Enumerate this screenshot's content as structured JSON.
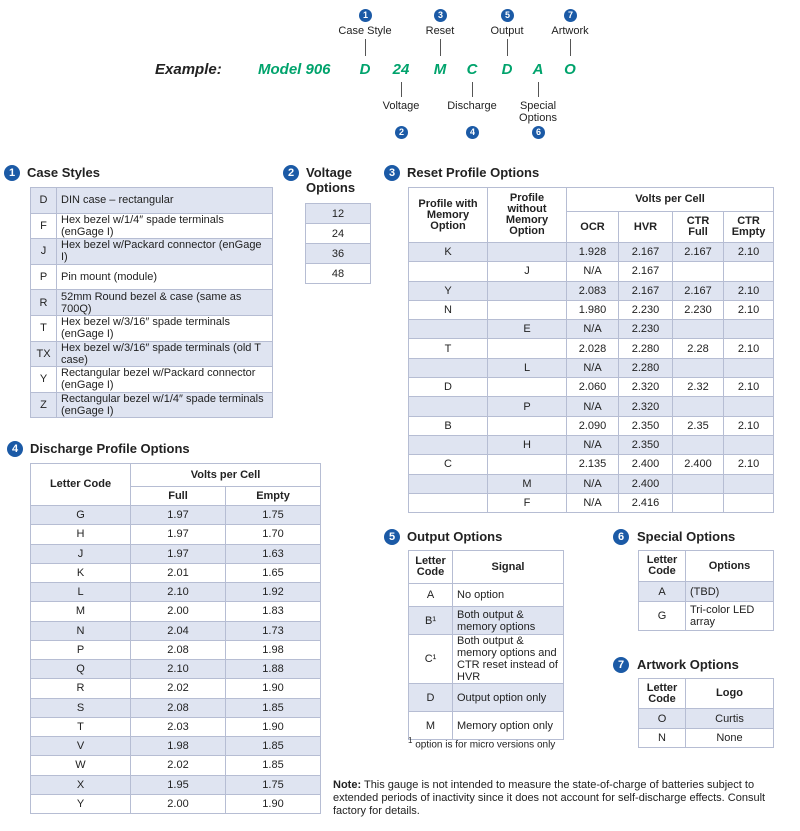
{
  "example": {
    "label": "Example:",
    "model": "Model 906",
    "codes": [
      "D",
      "24",
      "M",
      "C",
      "D",
      "A",
      "O"
    ],
    "callouts_above": [
      {
        "number": "1",
        "label": "Case Style"
      },
      {
        "number": "3",
        "label": "Reset"
      },
      {
        "number": "5",
        "label": "Output"
      },
      {
        "number": "7",
        "label": "Artwork"
      }
    ],
    "callouts_below": [
      {
        "number": "2",
        "label": "Voltage"
      },
      {
        "number": "4",
        "label": "Discharge"
      },
      {
        "number": "6",
        "label": "Special Options"
      }
    ]
  },
  "case_styles": {
    "number": "1",
    "title": "Case Styles",
    "rows": [
      [
        "D",
        "DIN case – rectangular"
      ],
      [
        "F",
        "Hex bezel w/1/4″ spade terminals (enGage I)"
      ],
      [
        "J",
        "Hex bezel w/Packard connector (enGage I)"
      ],
      [
        "P",
        "Pin mount (module)"
      ],
      [
        "R",
        "52mm Round bezel & case (same as 700Q)"
      ],
      [
        "T",
        "Hex bezel w/3/16″ spade terminals (enGage I)"
      ],
      [
        "TX",
        "Hex bezel w/3/16″ spade terminals (old T case)"
      ],
      [
        "Y",
        "Rectangular bezel w/Packard connector (enGage I)"
      ],
      [
        "Z",
        "Rectangular bezel w/1/4″ spade terminals (enGage I)"
      ]
    ]
  },
  "voltage": {
    "number": "2",
    "title": "Voltage Options",
    "rows": [
      [
        "12"
      ],
      [
        "24"
      ],
      [
        "36"
      ],
      [
        "48"
      ]
    ]
  },
  "reset": {
    "number": "3",
    "title": "Reset Profile Options",
    "headers": [
      "Profile with Memory Option",
      "Profile without Memory Option",
      "Volts per Cell",
      "OCR",
      "HVR",
      "CTR Full",
      "CTR Empty"
    ],
    "rows": [
      [
        "K",
        null,
        "1.928",
        "2.167",
        "2.167",
        "2.10"
      ],
      [
        null,
        "J",
        "N/A",
        "2.167",
        null,
        null
      ],
      [
        "Y",
        null,
        "2.083",
        "2.167",
        "2.167",
        "2.10"
      ],
      [
        "N",
        null,
        "1.980",
        "2.230",
        "2.230",
        "2.10"
      ],
      [
        null,
        "E",
        "N/A",
        "2.230",
        null,
        null
      ],
      [
        "T",
        null,
        "2.028",
        "2.280",
        "2.28",
        "2.10"
      ],
      [
        null,
        "L",
        "N/A",
        "2.280",
        null,
        null
      ],
      [
        "D",
        null,
        "2.060",
        "2.320",
        "2.32",
        "2.10"
      ],
      [
        null,
        "P",
        "N/A",
        "2.320",
        null,
        null
      ],
      [
        "B",
        null,
        "2.090",
        "2.350",
        "2.35",
        "2.10"
      ],
      [
        null,
        "H",
        "N/A",
        "2.350",
        null,
        null
      ],
      [
        "C",
        null,
        "2.135",
        "2.400",
        "2.400",
        "2.10"
      ],
      [
        null,
        "M",
        "N/A",
        "2.400",
        null,
        null
      ],
      [
        null,
        "F",
        "N/A",
        "2.416",
        null,
        null
      ]
    ]
  },
  "discharge": {
    "number": "4",
    "title": "Discharge Profile Options",
    "headers": [
      "Letter Code",
      "Volts per Cell",
      "Full",
      "Empty"
    ],
    "rows": [
      [
        "G",
        "1.97",
        "1.75"
      ],
      [
        "H",
        "1.97",
        "1.70"
      ],
      [
        "J",
        "1.97",
        "1.63"
      ],
      [
        "K",
        "2.01",
        "1.65"
      ],
      [
        "L",
        "2.10",
        "1.92"
      ],
      [
        "M",
        "2.00",
        "1.83"
      ],
      [
        "N",
        "2.04",
        "1.73"
      ],
      [
        "P",
        "2.08",
        "1.98"
      ],
      [
        "Q",
        "2.10",
        "1.88"
      ],
      [
        "R",
        "2.02",
        "1.90"
      ],
      [
        "S",
        "2.08",
        "1.85"
      ],
      [
        "T",
        "2.03",
        "1.90"
      ],
      [
        "V",
        "1.98",
        "1.85"
      ],
      [
        "W",
        "2.02",
        "1.85"
      ],
      [
        "X",
        "1.95",
        "1.75"
      ],
      [
        "Y",
        "2.00",
        "1.90"
      ]
    ]
  },
  "output": {
    "number": "5",
    "title": "Output Options",
    "headers": [
      "Letter Code",
      "Signal"
    ],
    "rows": [
      [
        "A",
        "No option"
      ],
      [
        "B¹",
        "Both output & memory options"
      ],
      [
        "C¹",
        "Both output & memory options and CTR reset instead of HVR"
      ],
      [
        "D",
        "Output option only"
      ],
      [
        "M",
        "Memory option only"
      ]
    ],
    "footnote": {
      "mark": "1",
      "text": "option is for micro versions only"
    }
  },
  "special": {
    "number": "6",
    "title": "Special Options",
    "headers": [
      "Letter Code",
      "Options"
    ],
    "rows": [
      [
        "A",
        "(TBD)"
      ],
      [
        "G",
        "Tri-color LED array"
      ]
    ]
  },
  "artwork": {
    "number": "7",
    "title": "Artwork Options",
    "headers": [
      "Letter Code",
      "Logo"
    ],
    "rows": [
      [
        "O",
        "Curtis"
      ],
      [
        "N",
        "None"
      ]
    ]
  },
  "note": {
    "label": "Note:",
    "text": "This gauge is not intended to measure the state-of-charge of batteries subject to extended periods of inactivity since it does not account for self-discharge effects. Consult factory for details."
  }
}
